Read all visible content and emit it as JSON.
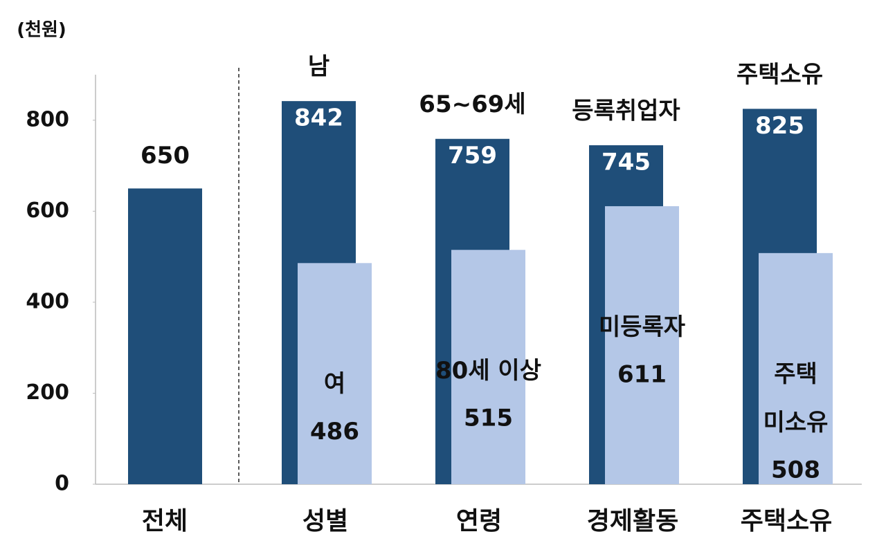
{
  "chart_data": {
    "type": "bar",
    "y_label": "(천원)",
    "categories": [
      "전체",
      "성별",
      "연령",
      "경제활동",
      "주택소유"
    ],
    "series": [
      {
        "color": "#1f4e79",
        "values": [
          650,
          842,
          759,
          745,
          825
        ],
        "bar_labels": [
          null,
          "남",
          "65~69세",
          "등록취업자",
          "주택소유"
        ]
      },
      {
        "color": "#b4c7e7",
        "values": [
          null,
          486,
          515,
          611,
          508
        ],
        "bar_labels": [
          null,
          "여",
          "80세 이상",
          "미등록자",
          "주택\n미소유"
        ]
      }
    ],
    "ylim": [
      0,
      900
    ],
    "yticks": [
      0,
      200,
      400,
      600,
      800
    ],
    "grid": false
  }
}
